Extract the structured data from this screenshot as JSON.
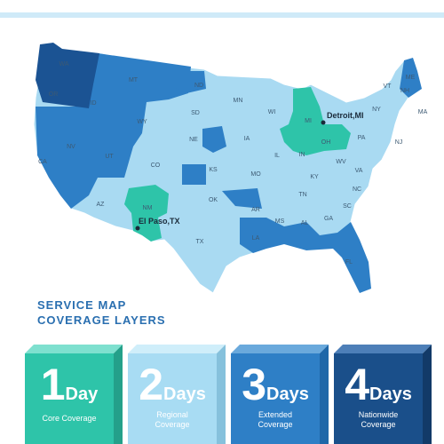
{
  "map": {
    "states": [
      "WA",
      "OR",
      "CA",
      "NV",
      "ID",
      "MT",
      "WY",
      "UT",
      "AZ",
      "CO",
      "NM",
      "ND",
      "SD",
      "NE",
      "KS",
      "OK",
      "TX",
      "MN",
      "IA",
      "MO",
      "AR",
      "LA",
      "WI",
      "IL",
      "MI",
      "IN",
      "OH",
      "KY",
      "TN",
      "MS",
      "AL",
      "GA",
      "FL",
      "SC",
      "NC",
      "VA",
      "WV",
      "PA",
      "NY",
      "VT",
      "NH",
      "ME",
      "MA",
      "NJ"
    ],
    "cities": [
      "Detroit,MI",
      "El Paso,TX"
    ]
  },
  "legend": {
    "title": [
      "SERVICE MAP",
      "COVERAGE LAYERS"
    ],
    "tiers": [
      {
        "number": "1",
        "unit": "Day",
        "label": [
          "Core Coverage"
        ]
      },
      {
        "number": "2",
        "unit": "Days",
        "label": [
          "Regional",
          "Coverage"
        ]
      },
      {
        "number": "3",
        "unit": "Days",
        "label": [
          "Extended",
          "Coverage"
        ]
      },
      {
        "number": "4",
        "unit": "Days",
        "label": [
          "Nationwide",
          "Coverage"
        ]
      }
    ]
  }
}
